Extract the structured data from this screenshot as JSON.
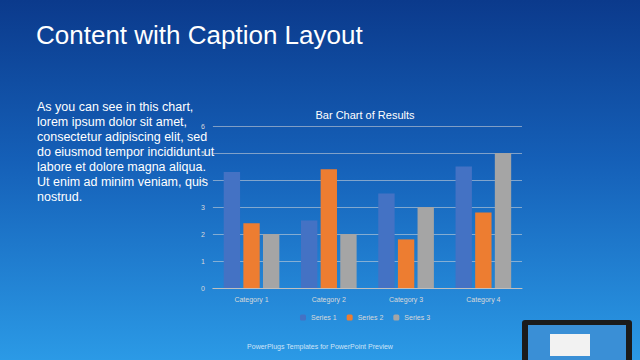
{
  "slide": {
    "title": "Content with Caption Layout",
    "caption": "As you can see in this chart, lorem ipsum dolor sit amet, consectetur adipiscing elit, sed do eiusmod tempor incididunt ut labore et dolore magna aliqua. Ut enim ad minim veniam, quis nostrud.",
    "footer": "PowerPlugs Templates for PowerPoint Preview"
  },
  "chart_data": {
    "type": "bar",
    "title": "Bar Chart of Results",
    "categories": [
      "Category 1",
      "Category 2",
      "Category 3",
      "Category 4"
    ],
    "series": [
      {
        "name": "Series 1",
        "color": "#4472c4",
        "values": [
          4.3,
          2.5,
          3.5,
          4.5
        ]
      },
      {
        "name": "Series 2",
        "color": "#ed7d31",
        "values": [
          2.4,
          4.4,
          1.8,
          2.8
        ]
      },
      {
        "name": "Series 3",
        "color": "#a5a5a5",
        "values": [
          2,
          2,
          3,
          5
        ]
      }
    ],
    "ylim": [
      0,
      6
    ],
    "yticks": [
      0,
      1,
      2,
      3,
      4,
      5,
      6
    ],
    "grid": true,
    "legend": "bottom"
  }
}
